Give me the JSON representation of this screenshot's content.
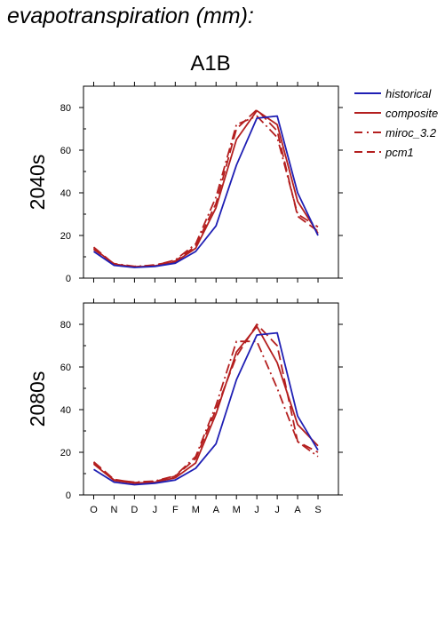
{
  "page": {
    "title": "evapotranspiration (mm):"
  },
  "colors": {
    "historical": "#1f1fb4",
    "composite": "#b41f1f",
    "miroc_3.2": "#b41f1f",
    "pcm1": "#b41f1f",
    "axis": "#000000"
  },
  "chart_data": {
    "type": "line",
    "title": "A1B",
    "categories": [
      "O",
      "N",
      "D",
      "J",
      "F",
      "M",
      "A",
      "M",
      "J",
      "J",
      "A",
      "S"
    ],
    "ylim": [
      0,
      90
    ],
    "yticks": [
      0,
      20,
      40,
      60,
      80
    ],
    "grid": false,
    "legend": {
      "placement": "right",
      "entries": [
        {
          "name": "historical",
          "style": "solid",
          "color": "#1f1fb4"
        },
        {
          "name": "composite",
          "style": "solid",
          "color": "#b41f1f"
        },
        {
          "name": "miroc_3.2",
          "style": "dash-dot",
          "color": "#b41f1f"
        },
        {
          "name": "pcm1",
          "style": "dashed",
          "color": "#b41f1f"
        }
      ]
    },
    "panels": [
      {
        "ylabel": "2040s",
        "series": [
          {
            "name": "historical",
            "values": [
              12.5,
              6.0,
              5.0,
              5.5,
              7.0,
              12.5,
              24.5,
              53.0,
              75.0,
              76.0,
              40.0,
              20.0
            ]
          },
          {
            "name": "composite",
            "values": [
              14.0,
              6.5,
              5.2,
              5.8,
              7.5,
              14.0,
              33.0,
              65.0,
              78.5,
              72.0,
              36.0,
              21.0
            ]
          },
          {
            "name": "miroc_3.2",
            "values": [
              13.5,
              6.8,
              5.5,
              6.0,
              8.5,
              16.0,
              38.0,
              72.0,
              76.0,
              66.0,
              30.0,
              24.0
            ]
          },
          {
            "name": "pcm1",
            "values": [
              14.5,
              6.6,
              5.3,
              6.2,
              8.0,
              15.0,
              35.0,
              70.0,
              79.0,
              69.0,
              29.0,
              22.0
            ]
          }
        ]
      },
      {
        "ylabel": "2080s",
        "series": [
          {
            "name": "historical",
            "values": [
              12.0,
              6.0,
              4.8,
              5.5,
              7.0,
              12.5,
              24.0,
              54.0,
              75.0,
              76.0,
              37.0,
              21.0
            ]
          },
          {
            "name": "composite",
            "values": [
              14.5,
              6.8,
              5.5,
              6.0,
              8.0,
              15.0,
              38.0,
              67.0,
              79.0,
              62.0,
              33.0,
              23.0
            ]
          },
          {
            "name": "miroc_3.2",
            "values": [
              15.0,
              7.0,
              6.0,
              6.5,
              9.0,
              18.0,
              42.0,
              72.0,
              72.0,
              50.0,
              25.0,
              18.0
            ]
          },
          {
            "name": "pcm1",
            "values": [
              15.5,
              7.3,
              5.8,
              6.3,
              8.8,
              17.0,
              40.0,
              65.0,
              80.0,
              70.0,
              25.0,
              20.0
            ]
          }
        ]
      }
    ]
  }
}
